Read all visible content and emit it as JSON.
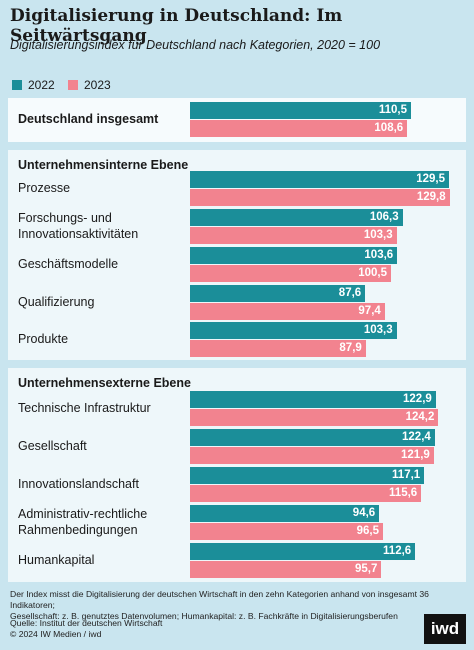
{
  "chart_data": {
    "type": "bar",
    "title": "Digitalisierung in Deutschland: Im Seitwärtsgang",
    "subtitle": "Digitalisierungsindex für Deutschland nach Kategorien, 2020 = 100",
    "section_titles": [
      "Unternehmensinterne Ebene",
      "Unternehmensexterne Ebene"
    ],
    "categories": [
      "Deutschland insgesamt",
      "Prozesse",
      "Forschungs- und\nInnovationsaktivitäten",
      "Geschäftsmodelle",
      "Qualifizierung",
      "Produkte",
      "Technische Infrastruktur",
      "Gesellschaft",
      "Innovationslandschaft",
      "Administrativ-rechtliche\nRahmenbedingungen",
      "Humankapital"
    ],
    "series": [
      {
        "name": "2022",
        "color": "#1b8e99",
        "values": [
          110.5,
          129.5,
          106.3,
          103.6,
          87.6,
          103.3,
          122.9,
          122.4,
          117.1,
          94.6,
          112.6
        ],
        "value_labels": [
          "110,5",
          "129,5",
          "106,3",
          "103,6",
          "87,6",
          "103,3",
          "122,9",
          "122,4",
          "117,1",
          "94,6",
          "112,6"
        ]
      },
      {
        "name": "2023",
        "color": "#f2838f",
        "values": [
          108.6,
          129.8,
          103.3,
          100.5,
          97.4,
          87.9,
          124.2,
          121.9,
          115.6,
          96.5,
          95.7
        ],
        "value_labels": [
          "108,6",
          "129,8",
          "103,3",
          "100,5",
          "97,4",
          "87,9",
          "124,2",
          "121,9",
          "115,6",
          "96,5",
          "95,7"
        ]
      }
    ],
    "xlim": [
      0,
      130
    ],
    "note": "Der Index misst die Digitalisierung der deutschen Wirtschaft in den zehn Kategorien anhand von insgesamt 36 Indikatoren;\nGesellschaft: z. B. genutztes Datenvolumen; Humankapital: z. B. Fachkräfte in Digitalisierungsberufen",
    "source": "Quelle: Institut der deutschen Wirtschaft",
    "copyright": "© 2024 IW Medien / iwd",
    "logo": "iwd"
  }
}
